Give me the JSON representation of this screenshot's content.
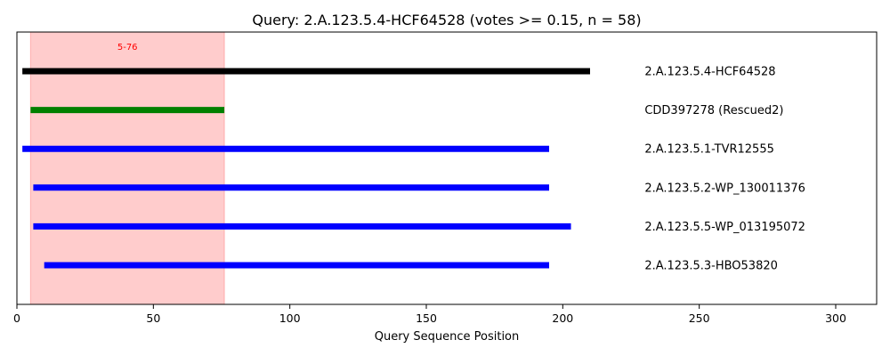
{
  "chart_data": {
    "type": "bar",
    "title": "Query: 2.A.123.5.4-HCF64528 (votes >= 0.15, n = 58)",
    "xlabel": "Query Sequence Position",
    "ylabel": "",
    "xlim": [
      0,
      315
    ],
    "xticks": [
      0,
      50,
      100,
      150,
      200,
      250,
      300
    ],
    "grid": false,
    "highlight_region": {
      "start": 5,
      "end": 76,
      "label": "5-76",
      "color": "#ff9999",
      "label_color": "#ff0000"
    },
    "label_x": 230,
    "series": [
      {
        "name": "2.A.123.5.4-HCF64528",
        "start": 2,
        "end": 210,
        "color": "#000000"
      },
      {
        "name": "CDD397278 (Rescued2)",
        "start": 5,
        "end": 76,
        "color": "#008000"
      },
      {
        "name": "2.A.123.5.1-TVR12555",
        "start": 2,
        "end": 195,
        "color": "#0000ff"
      },
      {
        "name": "2.A.123.5.2-WP_130011376",
        "start": 6,
        "end": 195,
        "color": "#0000ff"
      },
      {
        "name": "2.A.123.5.5-WP_013195072",
        "start": 6,
        "end": 203,
        "color": "#0000ff"
      },
      {
        "name": "2.A.123.5.3-HBO53820",
        "start": 10,
        "end": 195,
        "color": "#0000ff"
      }
    ]
  }
}
